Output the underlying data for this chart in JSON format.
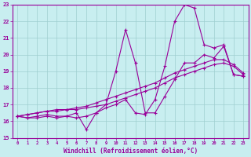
{
  "xlabel": "Windchill (Refroidissement éolien,°C)",
  "ylabel": "",
  "xlim": [
    -0.5,
    23.5
  ],
  "ylim": [
    15,
    23
  ],
  "xticks": [
    0,
    1,
    2,
    3,
    4,
    5,
    6,
    7,
    8,
    9,
    10,
    11,
    12,
    13,
    14,
    15,
    16,
    17,
    18,
    19,
    20,
    21,
    22,
    23
  ],
  "yticks": [
    15,
    16,
    17,
    18,
    19,
    20,
    21,
    22,
    23
  ],
  "bg_color": "#c8eef0",
  "grid_color": "#9fcfcf",
  "line_color": "#990099",
  "lines": [
    {
      "x": [
        0,
        1,
        2,
        3,
        4,
        5,
        6,
        7,
        8,
        9,
        10,
        11,
        12,
        13,
        14,
        15,
        16,
        17,
        18,
        19,
        20,
        21,
        22,
        23
      ],
      "y": [
        16.3,
        16.4,
        16.5,
        16.6,
        16.6,
        16.7,
        16.7,
        16.8,
        16.9,
        17.0,
        17.2,
        17.4,
        17.6,
        17.8,
        18.0,
        18.3,
        18.6,
        18.8,
        19.0,
        19.2,
        19.4,
        19.5,
        19.3,
        18.8
      ]
    },
    {
      "x": [
        0,
        1,
        2,
        3,
        4,
        5,
        6,
        7,
        8,
        9,
        10,
        11,
        12,
        13,
        14,
        15,
        16,
        17,
        18,
        19,
        20,
        21,
        22,
        23
      ],
      "y": [
        16.3,
        16.2,
        16.3,
        16.4,
        16.3,
        16.3,
        16.5,
        15.5,
        16.5,
        17.0,
        19.0,
        21.5,
        19.5,
        16.5,
        16.5,
        17.5,
        18.5,
        19.5,
        19.5,
        20.0,
        19.8,
        20.5,
        18.8,
        18.7
      ]
    },
    {
      "x": [
        0,
        1,
        2,
        3,
        4,
        5,
        6,
        7,
        8,
        9,
        10,
        11,
        12,
        13,
        14,
        15,
        16,
        17,
        18,
        19,
        20,
        21,
        22,
        23
      ],
      "y": [
        16.3,
        16.2,
        16.2,
        16.3,
        16.2,
        16.3,
        16.2,
        16.3,
        16.5,
        16.8,
        17.0,
        17.3,
        16.5,
        16.4,
        17.3,
        19.3,
        22.0,
        23.0,
        22.8,
        20.6,
        20.4,
        20.6,
        18.8,
        18.7
      ]
    },
    {
      "x": [
        0,
        1,
        2,
        3,
        4,
        5,
        6,
        7,
        8,
        9,
        10,
        11,
        12,
        13,
        14,
        15,
        16,
        17,
        18,
        19,
        20,
        21,
        22,
        23
      ],
      "y": [
        16.3,
        16.4,
        16.5,
        16.6,
        16.7,
        16.7,
        16.8,
        16.9,
        17.1,
        17.3,
        17.5,
        17.7,
        17.9,
        18.1,
        18.3,
        18.6,
        18.9,
        19.1,
        19.3,
        19.5,
        19.7,
        19.7,
        19.4,
        18.9
      ]
    }
  ]
}
